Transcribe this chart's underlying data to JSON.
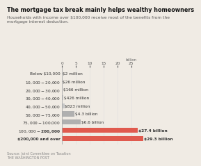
{
  "title": "The mortgage tax break mainly helps wealthy homeowners",
  "subtitle": "Households with income over $100,000 receive most of the benefits from the\nmortgage interest deduction.",
  "source": "Source: Joint Committee on Taxation\nTHE WASHINGTON POST",
  "categories": [
    "Below $10,000",
    "$10,000-$20,000",
    "$20,000-$30,000",
    "$30,000-$40,000",
    "$40,000-$50,000",
    "$50,000-$75,000",
    "$75,000-$100,000",
    "$100,000-$200,000",
    "$200,000 and over"
  ],
  "values": [
    0.002,
    0.026,
    0.166,
    0.426,
    0.823,
    4.3,
    6.6,
    27.4,
    29.3
  ],
  "labels": [
    "$2 million",
    "$26 million",
    "$166 million",
    "$426 million",
    "$823 million",
    "$4.3 billion",
    "$6.6 billion",
    "$27.4 billion",
    "$29.3 billion"
  ],
  "colors": [
    "#c8c8c8",
    "#c8c8c8",
    "#c8c8c8",
    "#c8c8c8",
    "#c8c8c8",
    "#b0b0b0",
    "#b0b0b0",
    "#e05a4e",
    "#e05a4e"
  ],
  "bold_rows": [
    7,
    8
  ],
  "xlim": [
    0,
    32
  ],
  "xticks": [
    0,
    5,
    10,
    15,
    20,
    25
  ],
  "xlabel_top": "billion",
  "bar_height": 0.62,
  "title_fontsize": 5.8,
  "subtitle_fontsize": 4.3,
  "label_fontsize": 4.2,
  "tick_fontsize": 4.2,
  "source_fontsize": 3.6,
  "bg_color": "#f0ebe4"
}
